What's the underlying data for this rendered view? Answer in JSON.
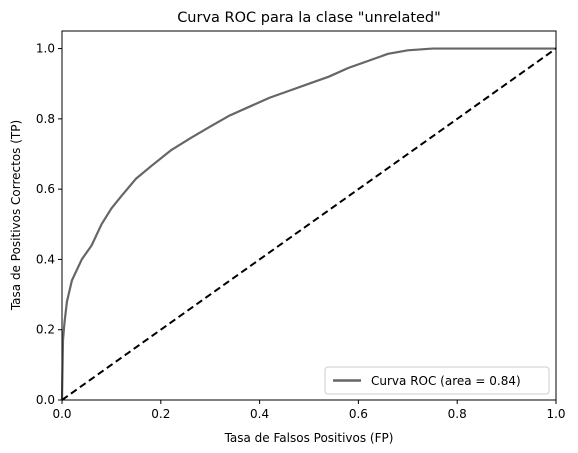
{
  "chart_data": {
    "type": "line",
    "title": "Curva ROC para la clase \"unrelated\"",
    "xlabel": "Tasa de Falsos Positivos (FP)",
    "ylabel": "Tasa de Positivos Correctos (TP)",
    "xlim": [
      0.0,
      1.0
    ],
    "ylim": [
      0.0,
      1.05
    ],
    "xticks": [
      0.0,
      0.2,
      0.4,
      0.6,
      0.8,
      1.0
    ],
    "yticks": [
      0.0,
      0.2,
      0.4,
      0.6,
      0.8,
      1.0
    ],
    "xtick_labels": [
      "0.0",
      "0.2",
      "0.4",
      "0.6",
      "0.8",
      "1.0"
    ],
    "ytick_labels": [
      "0.0",
      "0.2",
      "0.4",
      "0.6",
      "0.8",
      "1.0"
    ],
    "grid": false,
    "legend": {
      "placement": "lower-right",
      "entries": [
        "Curva ROC (area = 0.84)"
      ]
    },
    "series": [
      {
        "name": "Curva ROC (area = 0.84)",
        "color": "#666666",
        "style": "solid",
        "x": [
          0.0,
          0.002,
          0.005,
          0.01,
          0.02,
          0.03,
          0.04,
          0.05,
          0.06,
          0.07,
          0.08,
          0.1,
          0.12,
          0.15,
          0.18,
          0.22,
          0.26,
          0.3,
          0.34,
          0.38,
          0.42,
          0.46,
          0.5,
          0.54,
          0.58,
          0.62,
          0.66,
          0.7,
          0.75,
          0.8,
          0.85,
          0.9,
          0.95,
          1.0
        ],
        "y": [
          0.0,
          0.17,
          0.22,
          0.28,
          0.34,
          0.37,
          0.4,
          0.42,
          0.44,
          0.47,
          0.5,
          0.545,
          0.58,
          0.63,
          0.665,
          0.71,
          0.745,
          0.778,
          0.81,
          0.835,
          0.86,
          0.88,
          0.9,
          0.92,
          0.945,
          0.965,
          0.985,
          0.995,
          1.0,
          1.0,
          1.0,
          1.0,
          1.0,
          1.0
        ]
      },
      {
        "color": "#000000",
        "style": "dashed",
        "x": [
          0.0,
          1.0
        ],
        "y": [
          0.0,
          1.0
        ]
      }
    ]
  }
}
